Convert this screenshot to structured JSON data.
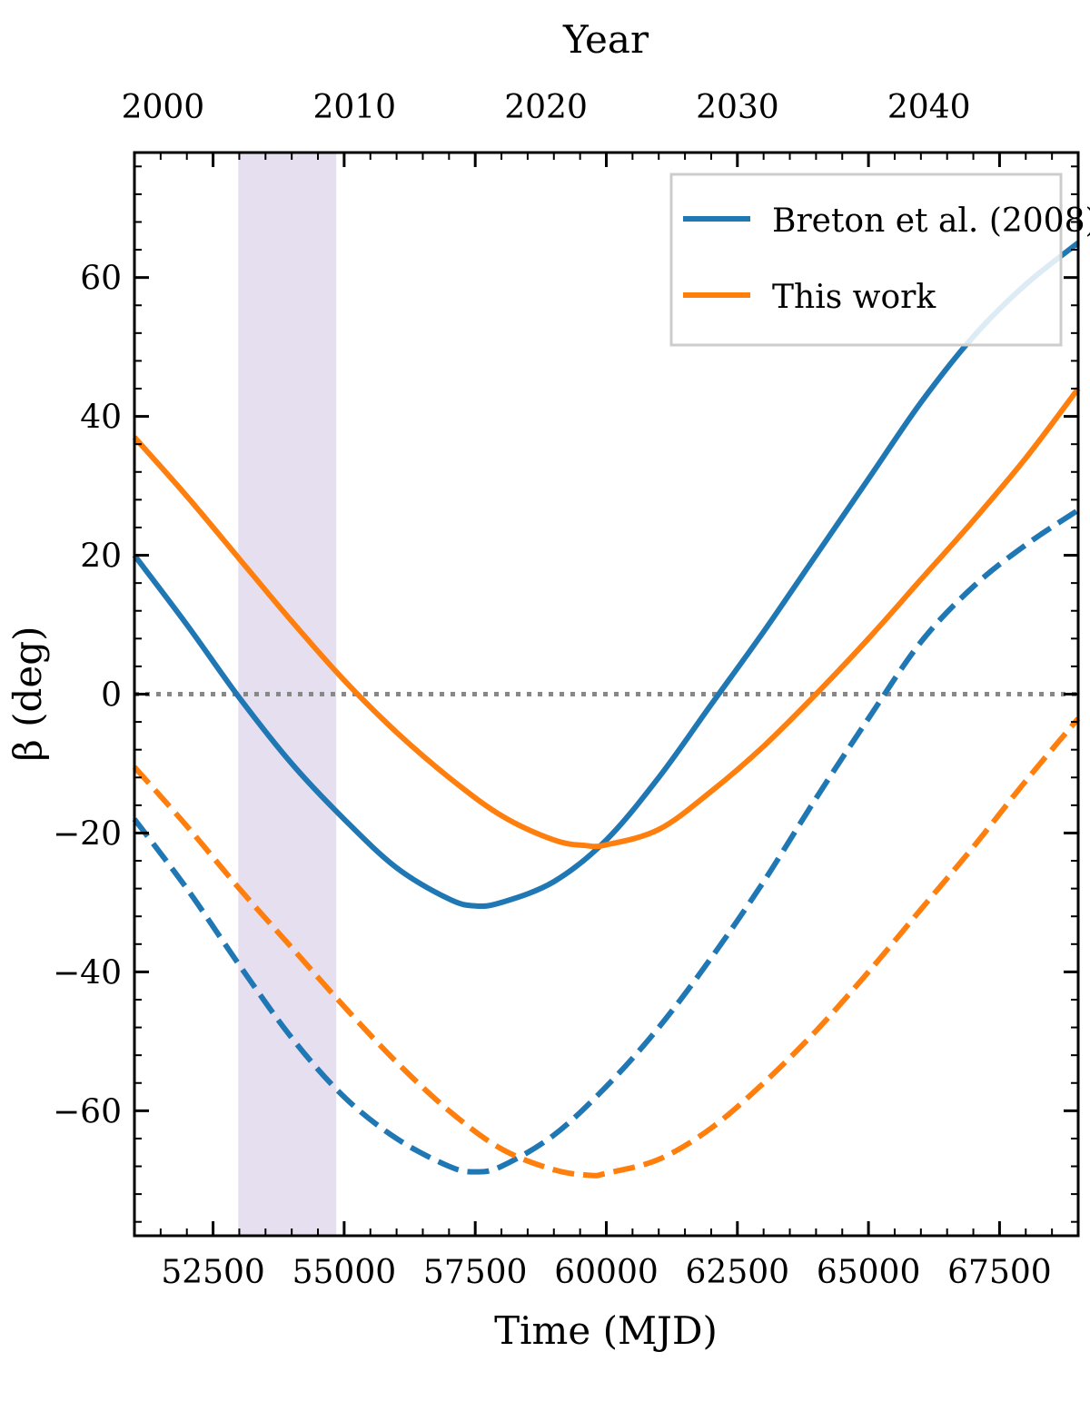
{
  "chart_data": {
    "type": "line",
    "title": "",
    "xlabel": "Time (MJD)",
    "ylabel": "β (deg)",
    "top_xlabel": "Year",
    "xlim": [
      51000,
      69000
    ],
    "ylim": [
      -78,
      78
    ],
    "xticks": [
      52500,
      55000,
      57500,
      60000,
      62500,
      65000,
      67500
    ],
    "yticks": [
      -60,
      -40,
      -20,
      0,
      20,
      40,
      60
    ],
    "top_ticks": [
      {
        "label": "2000",
        "mjd": 51544
      },
      {
        "label": "2010",
        "mjd": 55197
      },
      {
        "label": "2020",
        "mjd": 58849
      },
      {
        "label": "2030",
        "mjd": 62502
      },
      {
        "label": "2040",
        "mjd": 66154
      }
    ],
    "shaded_region": {
      "x0": 52980,
      "x1": 54850,
      "color": "#e6dff0"
    },
    "zero_line": {
      "y": 0,
      "color": "#888888",
      "style": "dotted"
    },
    "legend": {
      "location": "top-right",
      "entries": [
        {
          "label": "Breton et al. (2008)",
          "color": "#1f77b4"
        },
        {
          "label": "This work",
          "color": "#ff7f0e"
        }
      ]
    },
    "series": [
      {
        "name": "Breton et al. (2008)",
        "style": "solid",
        "color": "#1f77b4",
        "x": [
          51000,
          52000,
          53000,
          54000,
          55000,
          56000,
          57000,
          57500,
          58000,
          59000,
          60000,
          61000,
          62000,
          63000,
          64000,
          65000,
          66000,
          67000,
          68000,
          69000
        ],
        "y": [
          20,
          10,
          -0.5,
          -10,
          -18,
          -25,
          -29.5,
          -30.5,
          -30,
          -27,
          -21,
          -12,
          -1.5,
          9,
          20,
          31,
          42,
          51.5,
          59,
          65
        ]
      },
      {
        "name": "This work",
        "style": "solid",
        "color": "#ff7f0e",
        "x": [
          51000,
          52000,
          53000,
          54000,
          55000,
          56000,
          57000,
          58000,
          59000,
          59600,
          60000,
          61000,
          62000,
          63000,
          64000,
          65000,
          66000,
          67000,
          68000,
          69000
        ],
        "y": [
          37,
          28.5,
          19.5,
          10.5,
          2,
          -5.5,
          -12,
          -17.5,
          -21,
          -21.8,
          -21.7,
          -19.5,
          -14,
          -7.5,
          0,
          8,
          16.5,
          25,
          34,
          44
        ]
      },
      {
        "name": "Breton et al. (2008) (dashed)",
        "style": "dashed",
        "color": "#1f77b4",
        "x": [
          51000,
          52000,
          53000,
          54000,
          55000,
          56000,
          57000,
          57500,
          58000,
          59000,
          60000,
          61000,
          62000,
          63000,
          64000,
          65000,
          66000,
          67000,
          68000,
          69000
        ],
        "y": [
          -18,
          -28,
          -39,
          -49.5,
          -58,
          -64,
          -68,
          -68.8,
          -68,
          -63.5,
          -56.5,
          -48,
          -38,
          -27,
          -15,
          -3.5,
          7.5,
          15.5,
          21.5,
          26.5
        ]
      },
      {
        "name": "This work (dashed)",
        "style": "dashed",
        "color": "#ff7f0e",
        "x": [
          51000,
          52000,
          53000,
          54000,
          55000,
          56000,
          57000,
          58000,
          59000,
          59700,
          60000,
          61000,
          62000,
          63000,
          64000,
          65000,
          66000,
          67000,
          68000,
          69000
        ],
        "y": [
          -10.5,
          -19,
          -28,
          -36.5,
          -45,
          -53,
          -60,
          -65.5,
          -68.5,
          -69.3,
          -69,
          -67,
          -62.5,
          -56,
          -48.5,
          -40,
          -31,
          -22,
          -12.5,
          -3.5
        ]
      }
    ]
  }
}
